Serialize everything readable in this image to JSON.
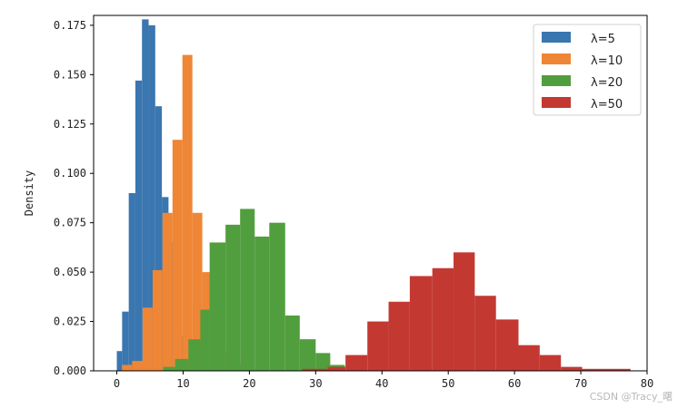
{
  "chart_data": {
    "type": "bar",
    "title": "",
    "xlabel": "",
    "ylabel": "Density",
    "xlim": [
      -3.5,
      80
    ],
    "ylim": [
      0,
      0.18
    ],
    "xticks": [
      0,
      10,
      20,
      30,
      40,
      50,
      60,
      70,
      80
    ],
    "yticks": [
      0.0,
      0.025,
      0.05,
      0.075,
      0.1,
      0.125,
      0.15,
      0.175
    ],
    "xtick_labels": [
      "0",
      "10",
      "20",
      "30",
      "40",
      "50",
      "60",
      "70",
      "80"
    ],
    "ytick_labels": [
      "0.000",
      "0.025",
      "0.050",
      "0.075",
      "0.100",
      "0.125",
      "0.150",
      "0.175"
    ],
    "grid": false,
    "legend_position": "top-right",
    "series": [
      {
        "name": "λ=5",
        "color": "#3a76af",
        "bins": [
          {
            "x0": 0.0,
            "x1": 0.8,
            "value": 0.01
          },
          {
            "x0": 0.8,
            "x1": 1.8,
            "value": 0.03
          },
          {
            "x0": 1.8,
            "x1": 2.8,
            "value": 0.09
          },
          {
            "x0": 2.8,
            "x1": 3.8,
            "value": 0.147
          },
          {
            "x0": 3.8,
            "x1": 4.8,
            "value": 0.178
          },
          {
            "x0": 4.8,
            "x1": 5.8,
            "value": 0.175
          },
          {
            "x0": 5.8,
            "x1": 6.8,
            "value": 0.134
          },
          {
            "x0": 6.8,
            "x1": 7.8,
            "value": 0.088
          },
          {
            "x0": 7.8,
            "x1": 8.8,
            "value": 0.065
          },
          {
            "x0": 8.8,
            "x1": 9.8,
            "value": 0.036
          },
          {
            "x0": 9.8,
            "x1": 10.8,
            "value": 0.018
          },
          {
            "x0": 10.8,
            "x1": 11.8,
            "value": 0.008
          },
          {
            "x0": 11.8,
            "x1": 12.8,
            "value": 0.004
          },
          {
            "x0": 12.8,
            "x1": 14.0,
            "value": 0.002
          }
        ]
      },
      {
        "name": "λ=10",
        "color": "#ee8636",
        "bins": [
          {
            "x0": 0.8,
            "x1": 2.3,
            "value": 0.003
          },
          {
            "x0": 2.3,
            "x1": 3.9,
            "value": 0.005
          },
          {
            "x0": 3.9,
            "x1": 5.4,
            "value": 0.032
          },
          {
            "x0": 5.4,
            "x1": 6.9,
            "value": 0.051
          },
          {
            "x0": 6.9,
            "x1": 8.4,
            "value": 0.08
          },
          {
            "x0": 8.4,
            "x1": 9.9,
            "value": 0.117
          },
          {
            "x0": 9.9,
            "x1": 11.4,
            "value": 0.16
          },
          {
            "x0": 11.4,
            "x1": 12.9,
            "value": 0.08
          },
          {
            "x0": 12.9,
            "x1": 14.5,
            "value": 0.05
          },
          {
            "x0": 14.5,
            "x1": 16.0,
            "value": 0.025
          },
          {
            "x0": 16.0,
            "x1": 17.5,
            "value": 0.01
          },
          {
            "x0": 17.5,
            "x1": 19.0,
            "value": 0.004
          }
        ]
      },
      {
        "name": "λ=20",
        "color": "#519e3e",
        "bins": [
          {
            "x0": 7.0,
            "x1": 8.8,
            "value": 0.002
          },
          {
            "x0": 8.8,
            "x1": 10.8,
            "value": 0.006
          },
          {
            "x0": 10.8,
            "x1": 12.6,
            "value": 0.016
          },
          {
            "x0": 12.6,
            "x1": 14.0,
            "value": 0.031
          },
          {
            "x0": 14.0,
            "x1": 16.4,
            "value": 0.065
          },
          {
            "x0": 16.4,
            "x1": 18.6,
            "value": 0.074
          },
          {
            "x0": 18.6,
            "x1": 20.8,
            "value": 0.082
          },
          {
            "x0": 20.8,
            "x1": 23.0,
            "value": 0.068
          },
          {
            "x0": 23.0,
            "x1": 25.4,
            "value": 0.075
          },
          {
            "x0": 25.4,
            "x1": 27.6,
            "value": 0.028
          },
          {
            "x0": 27.6,
            "x1": 30.0,
            "value": 0.016
          },
          {
            "x0": 30.0,
            "x1": 32.2,
            "value": 0.009
          },
          {
            "x0": 32.2,
            "x1": 34.4,
            "value": 0.003
          }
        ]
      },
      {
        "name": "λ=50",
        "color": "#c33932",
        "bins": [
          {
            "x0": 28.0,
            "x1": 31.8,
            "value": 0.001
          },
          {
            "x0": 31.8,
            "x1": 34.5,
            "value": 0.002
          },
          {
            "x0": 34.5,
            "x1": 37.8,
            "value": 0.008
          },
          {
            "x0": 37.8,
            "x1": 41.0,
            "value": 0.025
          },
          {
            "x0": 41.0,
            "x1": 44.2,
            "value": 0.035
          },
          {
            "x0": 44.2,
            "x1": 47.6,
            "value": 0.048
          },
          {
            "x0": 47.6,
            "x1": 50.8,
            "value": 0.052
          },
          {
            "x0": 50.8,
            "x1": 54.0,
            "value": 0.06
          },
          {
            "x0": 54.0,
            "x1": 57.2,
            "value": 0.038
          },
          {
            "x0": 57.2,
            "x1": 60.6,
            "value": 0.026
          },
          {
            "x0": 60.6,
            "x1": 63.8,
            "value": 0.013
          },
          {
            "x0": 63.8,
            "x1": 67.0,
            "value": 0.008
          },
          {
            "x0": 67.0,
            "x1": 70.2,
            "value": 0.002
          },
          {
            "x0": 70.2,
            "x1": 77.5,
            "value": 0.001
          }
        ]
      }
    ]
  },
  "watermark": "CSDN @Tracy_曙"
}
